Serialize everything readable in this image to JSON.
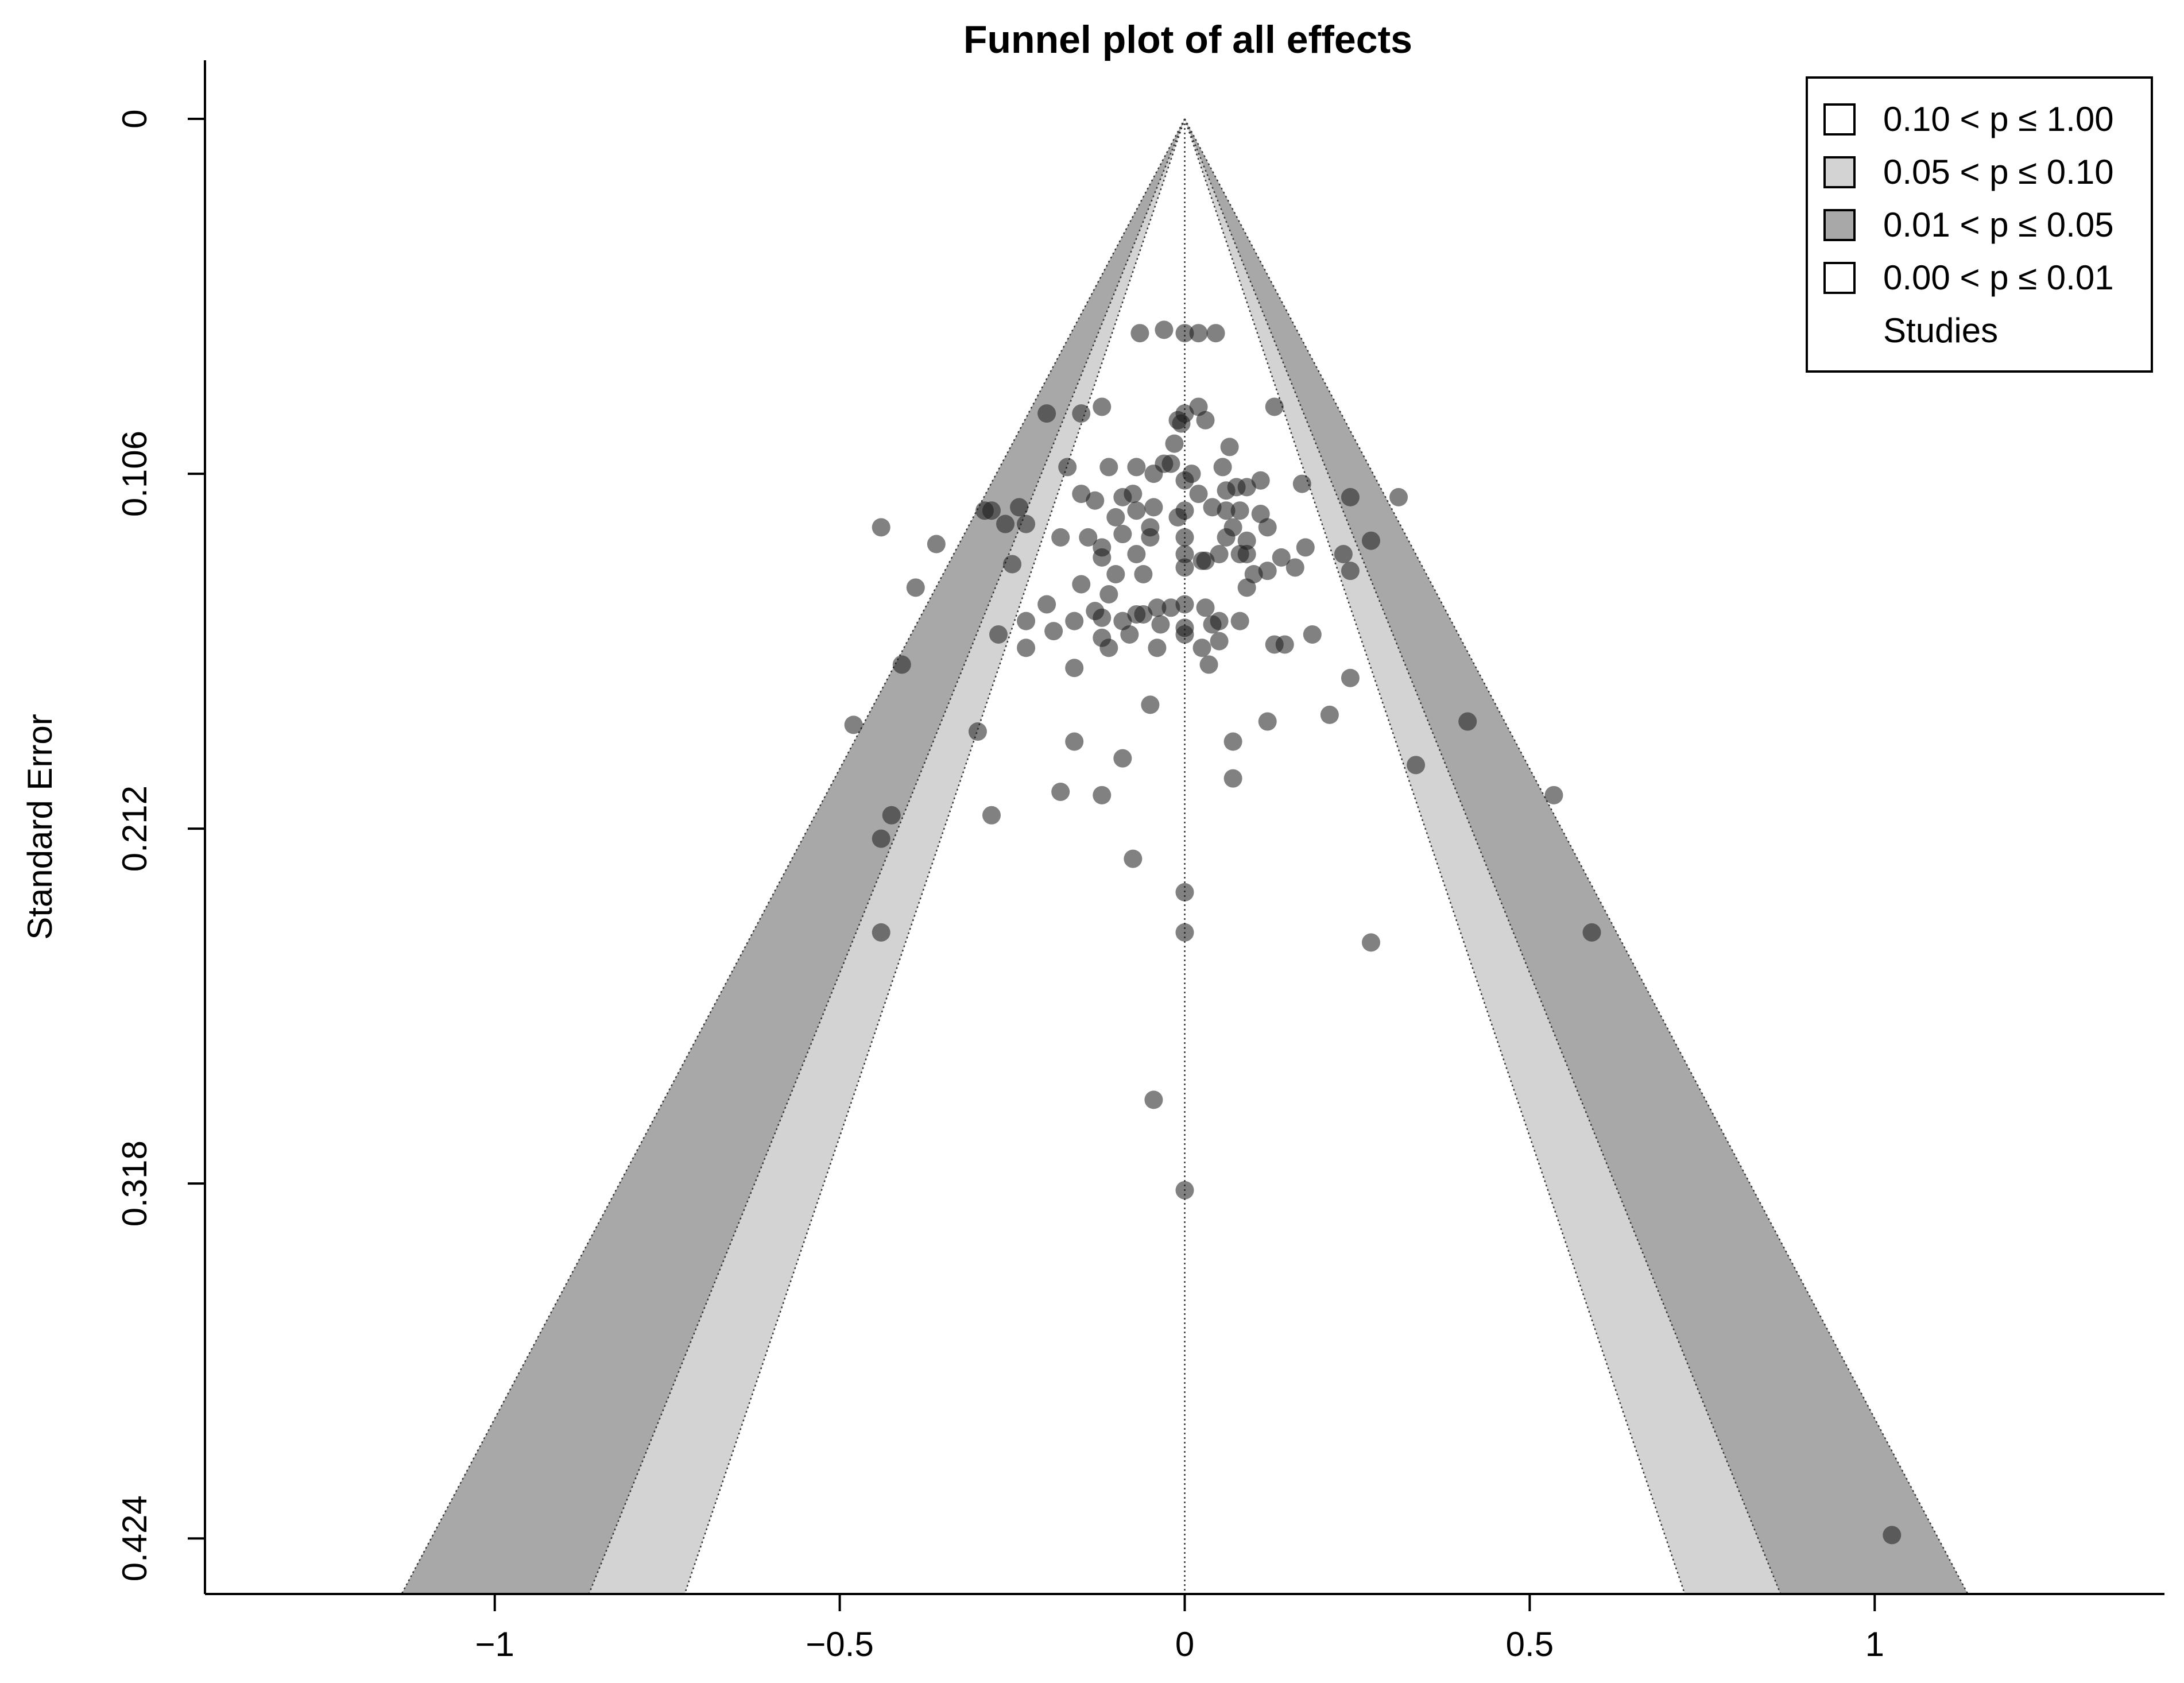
{
  "chart_data": {
    "type": "scatter",
    "title": "Funnel plot of all effects",
    "xlabel": "",
    "ylabel": "Standard Error",
    "xlim": [
      -1.42,
      1.42
    ],
    "ylim": [
      0.4406,
      -0.0175
    ],
    "x_ticks": [
      -1,
      -0.5,
      0,
      0.5,
      1
    ],
    "x_tick_labels": [
      "−1",
      "−0.5",
      "0",
      "0.5",
      "1"
    ],
    "y_ticks": [
      0,
      0.106,
      0.212,
      0.318,
      0.424
    ],
    "y_tick_labels": [
      "0",
      "0.106",
      "0.212",
      "0.318",
      "0.424"
    ],
    "grid": false,
    "legend_position": "top-right",
    "contours": [
      {
        "label": "0.10 < p ≤ 1.00",
        "color": "#ffffff",
        "z": 1.645
      },
      {
        "label": "0.05 < p ≤ 0.10",
        "color": "#d3d3d3",
        "z": 1.96
      },
      {
        "label": "0.01 < p ≤ 0.05",
        "color": "#a8a8a8",
        "z": 2.576
      },
      {
        "label": "0.00 < p ≤ 0.01",
        "color": "#ffffff",
        "z": null
      }
    ],
    "series": [
      {
        "name": "Studies",
        "color": "#1a1a1a",
        "points": [
          [
            -0.03,
            0.063
          ],
          [
            -0.065,
            0.064
          ],
          [
            0.0,
            0.064
          ],
          [
            0.02,
            0.064
          ],
          [
            0.045,
            0.064
          ],
          [
            -0.2,
            0.088
          ],
          [
            -0.15,
            0.088
          ],
          [
            -0.12,
            0.086
          ],
          [
            0.13,
            0.086
          ],
          [
            0.02,
            0.086
          ],
          [
            0.0,
            0.088
          ],
          [
            -0.01,
            0.09
          ],
          [
            0.03,
            0.09
          ],
          [
            -0.005,
            0.091
          ],
          [
            -0.015,
            0.097
          ],
          [
            0.065,
            0.098
          ],
          [
            -0.17,
            0.104
          ],
          [
            -0.11,
            0.104
          ],
          [
            -0.07,
            0.104
          ],
          [
            -0.03,
            0.103
          ],
          [
            -0.02,
            0.103
          ],
          [
            0.055,
            0.104
          ],
          [
            -0.045,
            0.106
          ],
          [
            0.01,
            0.106
          ],
          [
            0.11,
            0.108
          ],
          [
            -0.15,
            0.112
          ],
          [
            -0.13,
            0.114
          ],
          [
            -0.09,
            0.113
          ],
          [
            -0.075,
            0.112
          ],
          [
            0.0,
            0.108
          ],
          [
            0.02,
            0.112
          ],
          [
            0.06,
            0.111
          ],
          [
            0.075,
            0.11
          ],
          [
            0.09,
            0.11
          ],
          [
            0.17,
            0.109
          ],
          [
            -0.28,
            0.117
          ],
          [
            -0.29,
            0.117
          ],
          [
            -0.26,
            0.121
          ],
          [
            -0.24,
            0.116
          ],
          [
            0.24,
            0.113
          ],
          [
            0.31,
            0.113
          ],
          [
            -0.1,
            0.119
          ],
          [
            -0.07,
            0.117
          ],
          [
            -0.045,
            0.116
          ],
          [
            0.0,
            0.117
          ],
          [
            0.04,
            0.116
          ],
          [
            0.06,
            0.117
          ],
          [
            0.08,
            0.117
          ],
          [
            0.11,
            0.118
          ],
          [
            -0.44,
            0.122
          ],
          [
            -0.36,
            0.127
          ],
          [
            -0.23,
            0.121
          ],
          [
            -0.18,
            0.125
          ],
          [
            -0.14,
            0.125
          ],
          [
            -0.09,
            0.124
          ],
          [
            -0.05,
            0.122
          ],
          [
            -0.01,
            0.119
          ],
          [
            0.07,
            0.122
          ],
          [
            0.12,
            0.122
          ],
          [
            0.27,
            0.126
          ],
          [
            -0.12,
            0.128
          ],
          [
            -0.05,
            0.125
          ],
          [
            0.0,
            0.125
          ],
          [
            0.06,
            0.125
          ],
          [
            0.09,
            0.126
          ],
          [
            0.175,
            0.128
          ],
          [
            -0.25,
            0.133
          ],
          [
            -0.12,
            0.131
          ],
          [
            -0.07,
            0.13
          ],
          [
            0.0,
            0.13
          ],
          [
            0.03,
            0.132
          ],
          [
            0.05,
            0.13
          ],
          [
            0.08,
            0.13
          ],
          [
            0.09,
            0.13
          ],
          [
            0.14,
            0.131
          ],
          [
            0.23,
            0.13
          ],
          [
            -0.39,
            0.14
          ],
          [
            -0.15,
            0.139
          ],
          [
            -0.1,
            0.136
          ],
          [
            -0.06,
            0.136
          ],
          [
            0.0,
            0.134
          ],
          [
            0.025,
            0.132
          ],
          [
            0.1,
            0.136
          ],
          [
            0.12,
            0.135
          ],
          [
            0.16,
            0.134
          ],
          [
            0.24,
            0.135
          ],
          [
            -0.2,
            0.145
          ],
          [
            -0.13,
            0.147
          ],
          [
            -0.11,
            0.142
          ],
          [
            -0.07,
            0.148
          ],
          [
            -0.04,
            0.146
          ],
          [
            -0.02,
            0.146
          ],
          [
            0.0,
            0.145
          ],
          [
            0.03,
            0.146
          ],
          [
            0.09,
            0.14
          ],
          [
            -0.27,
            0.154
          ],
          [
            -0.23,
            0.15
          ],
          [
            -0.19,
            0.153
          ],
          [
            -0.16,
            0.15
          ],
          [
            -0.12,
            0.149
          ],
          [
            -0.09,
            0.15
          ],
          [
            -0.06,
            0.148
          ],
          [
            -0.035,
            0.151
          ],
          [
            0.0,
            0.152
          ],
          [
            0.04,
            0.151
          ],
          [
            0.05,
            0.15
          ],
          [
            0.08,
            0.15
          ],
          [
            -0.41,
            0.163
          ],
          [
            -0.23,
            0.158
          ],
          [
            -0.16,
            0.164
          ],
          [
            -0.12,
            0.155
          ],
          [
            -0.11,
            0.158
          ],
          [
            -0.08,
            0.154
          ],
          [
            -0.04,
            0.158
          ],
          [
            0.0,
            0.154
          ],
          [
            0.025,
            0.158
          ],
          [
            0.05,
            0.156
          ],
          [
            0.13,
            0.157
          ],
          [
            0.145,
            0.157
          ],
          [
            0.185,
            0.154
          ],
          [
            -0.48,
            0.181
          ],
          [
            -0.3,
            0.183
          ],
          [
            0.035,
            0.163
          ],
          [
            0.24,
            0.167
          ],
          [
            0.21,
            0.178
          ],
          [
            -0.05,
            0.175
          ],
          [
            -0.16,
            0.186
          ],
          [
            0.07,
            0.186
          ],
          [
            0.12,
            0.18
          ],
          [
            0.41,
            0.18
          ],
          [
            -0.09,
            0.191
          ],
          [
            0.335,
            0.193
          ],
          [
            0.07,
            0.197
          ],
          [
            -0.18,
            0.201
          ],
          [
            -0.12,
            0.202
          ],
          [
            0.535,
            0.202
          ],
          [
            -0.425,
            0.208
          ],
          [
            -0.28,
            0.208
          ],
          [
            -0.44,
            0.215
          ],
          [
            -0.075,
            0.221
          ],
          [
            0.0,
            0.231
          ],
          [
            -0.44,
            0.243
          ],
          [
            0.0,
            0.243
          ],
          [
            0.27,
            0.246
          ],
          [
            0.59,
            0.243
          ],
          [
            -0.045,
            0.293
          ],
          [
            0.0,
            0.32
          ],
          [
            1.025,
            0.423
          ]
        ]
      }
    ]
  }
}
